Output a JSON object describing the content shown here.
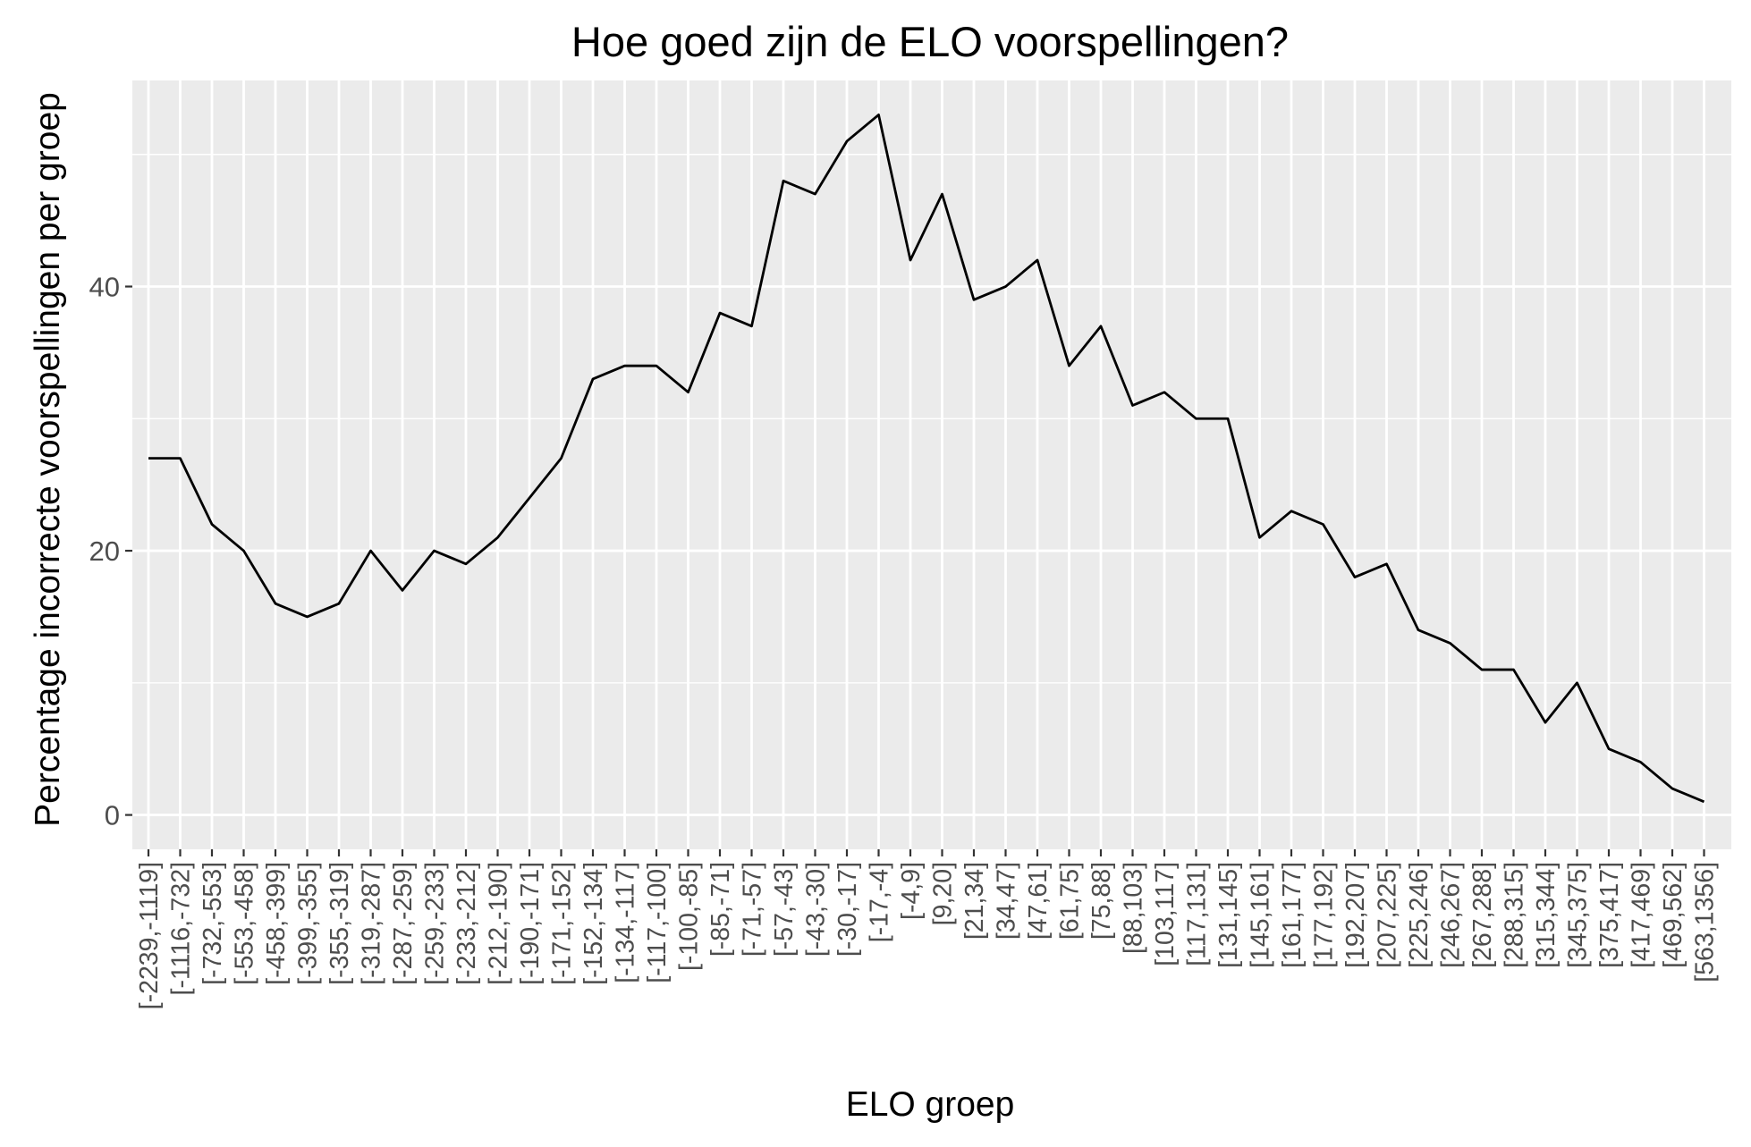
{
  "chart_data": {
    "type": "line",
    "title": "Hoe goed zijn de ELO voorspellingen?",
    "xlabel": "ELO groep",
    "ylabel": "Percentage incorrecte voorspellingen per groep",
    "categories": [
      "[-2239,-1119]",
      "[-1116,-732]",
      "[-732,-553]",
      "[-553,-458]",
      "[-458,-399]",
      "[-399,-355]",
      "[-355,-319]",
      "[-319,-287]",
      "[-287,-259]",
      "[-259,-233]",
      "[-233,-212]",
      "[-212,-190]",
      "[-190,-171]",
      "[-171,-152]",
      "[-152,-134]",
      "[-134,-117]",
      "[-117,-100]",
      "[-100,-85]",
      "[-85,-71]",
      "[-71,-57]",
      "[-57,-43]",
      "[-43,-30]",
      "[-30,-17]",
      "[-17,-4]",
      "[-4,9]",
      "[9,20]",
      "[21,34]",
      "[34,47]",
      "[47,61]",
      "[61,75]",
      "[75,88]",
      "[88,103]",
      "[103,117]",
      "[117,131]",
      "[131,145]",
      "[145,161]",
      "[161,177]",
      "[177,192]",
      "[192,207]",
      "[207,225]",
      "[225,246]",
      "[246,267]",
      "[267,288]",
      "[288,315]",
      "[315,344]",
      "[345,375]",
      "[375,417]",
      "[417,469]",
      "[469,562]",
      "[563,1356]"
    ],
    "series": [
      {
        "values": [
          27,
          27,
          22,
          20,
          16,
          15,
          16,
          20,
          17,
          20,
          19,
          21,
          24,
          27,
          33,
          34,
          34,
          32,
          38,
          37,
          48,
          47,
          51,
          53,
          42,
          47,
          39,
          40,
          42,
          34,
          37,
          31,
          32,
          30,
          30,
          21,
          23,
          22,
          18,
          19,
          14,
          13,
          11,
          11,
          7,
          10,
          5,
          4,
          2,
          1
        ]
      }
    ],
    "y_ticks": [
      "0",
      "20",
      "40"
    ],
    "ylim": [
      -2.6,
      55.6
    ],
    "grid": true,
    "legend": "none",
    "colors": {
      "panel_background": "#ebebeb",
      "grid": "#ffffff",
      "line": "#000000",
      "tick_text": "#4d4d4d",
      "tick_mark": "#333333"
    }
  }
}
